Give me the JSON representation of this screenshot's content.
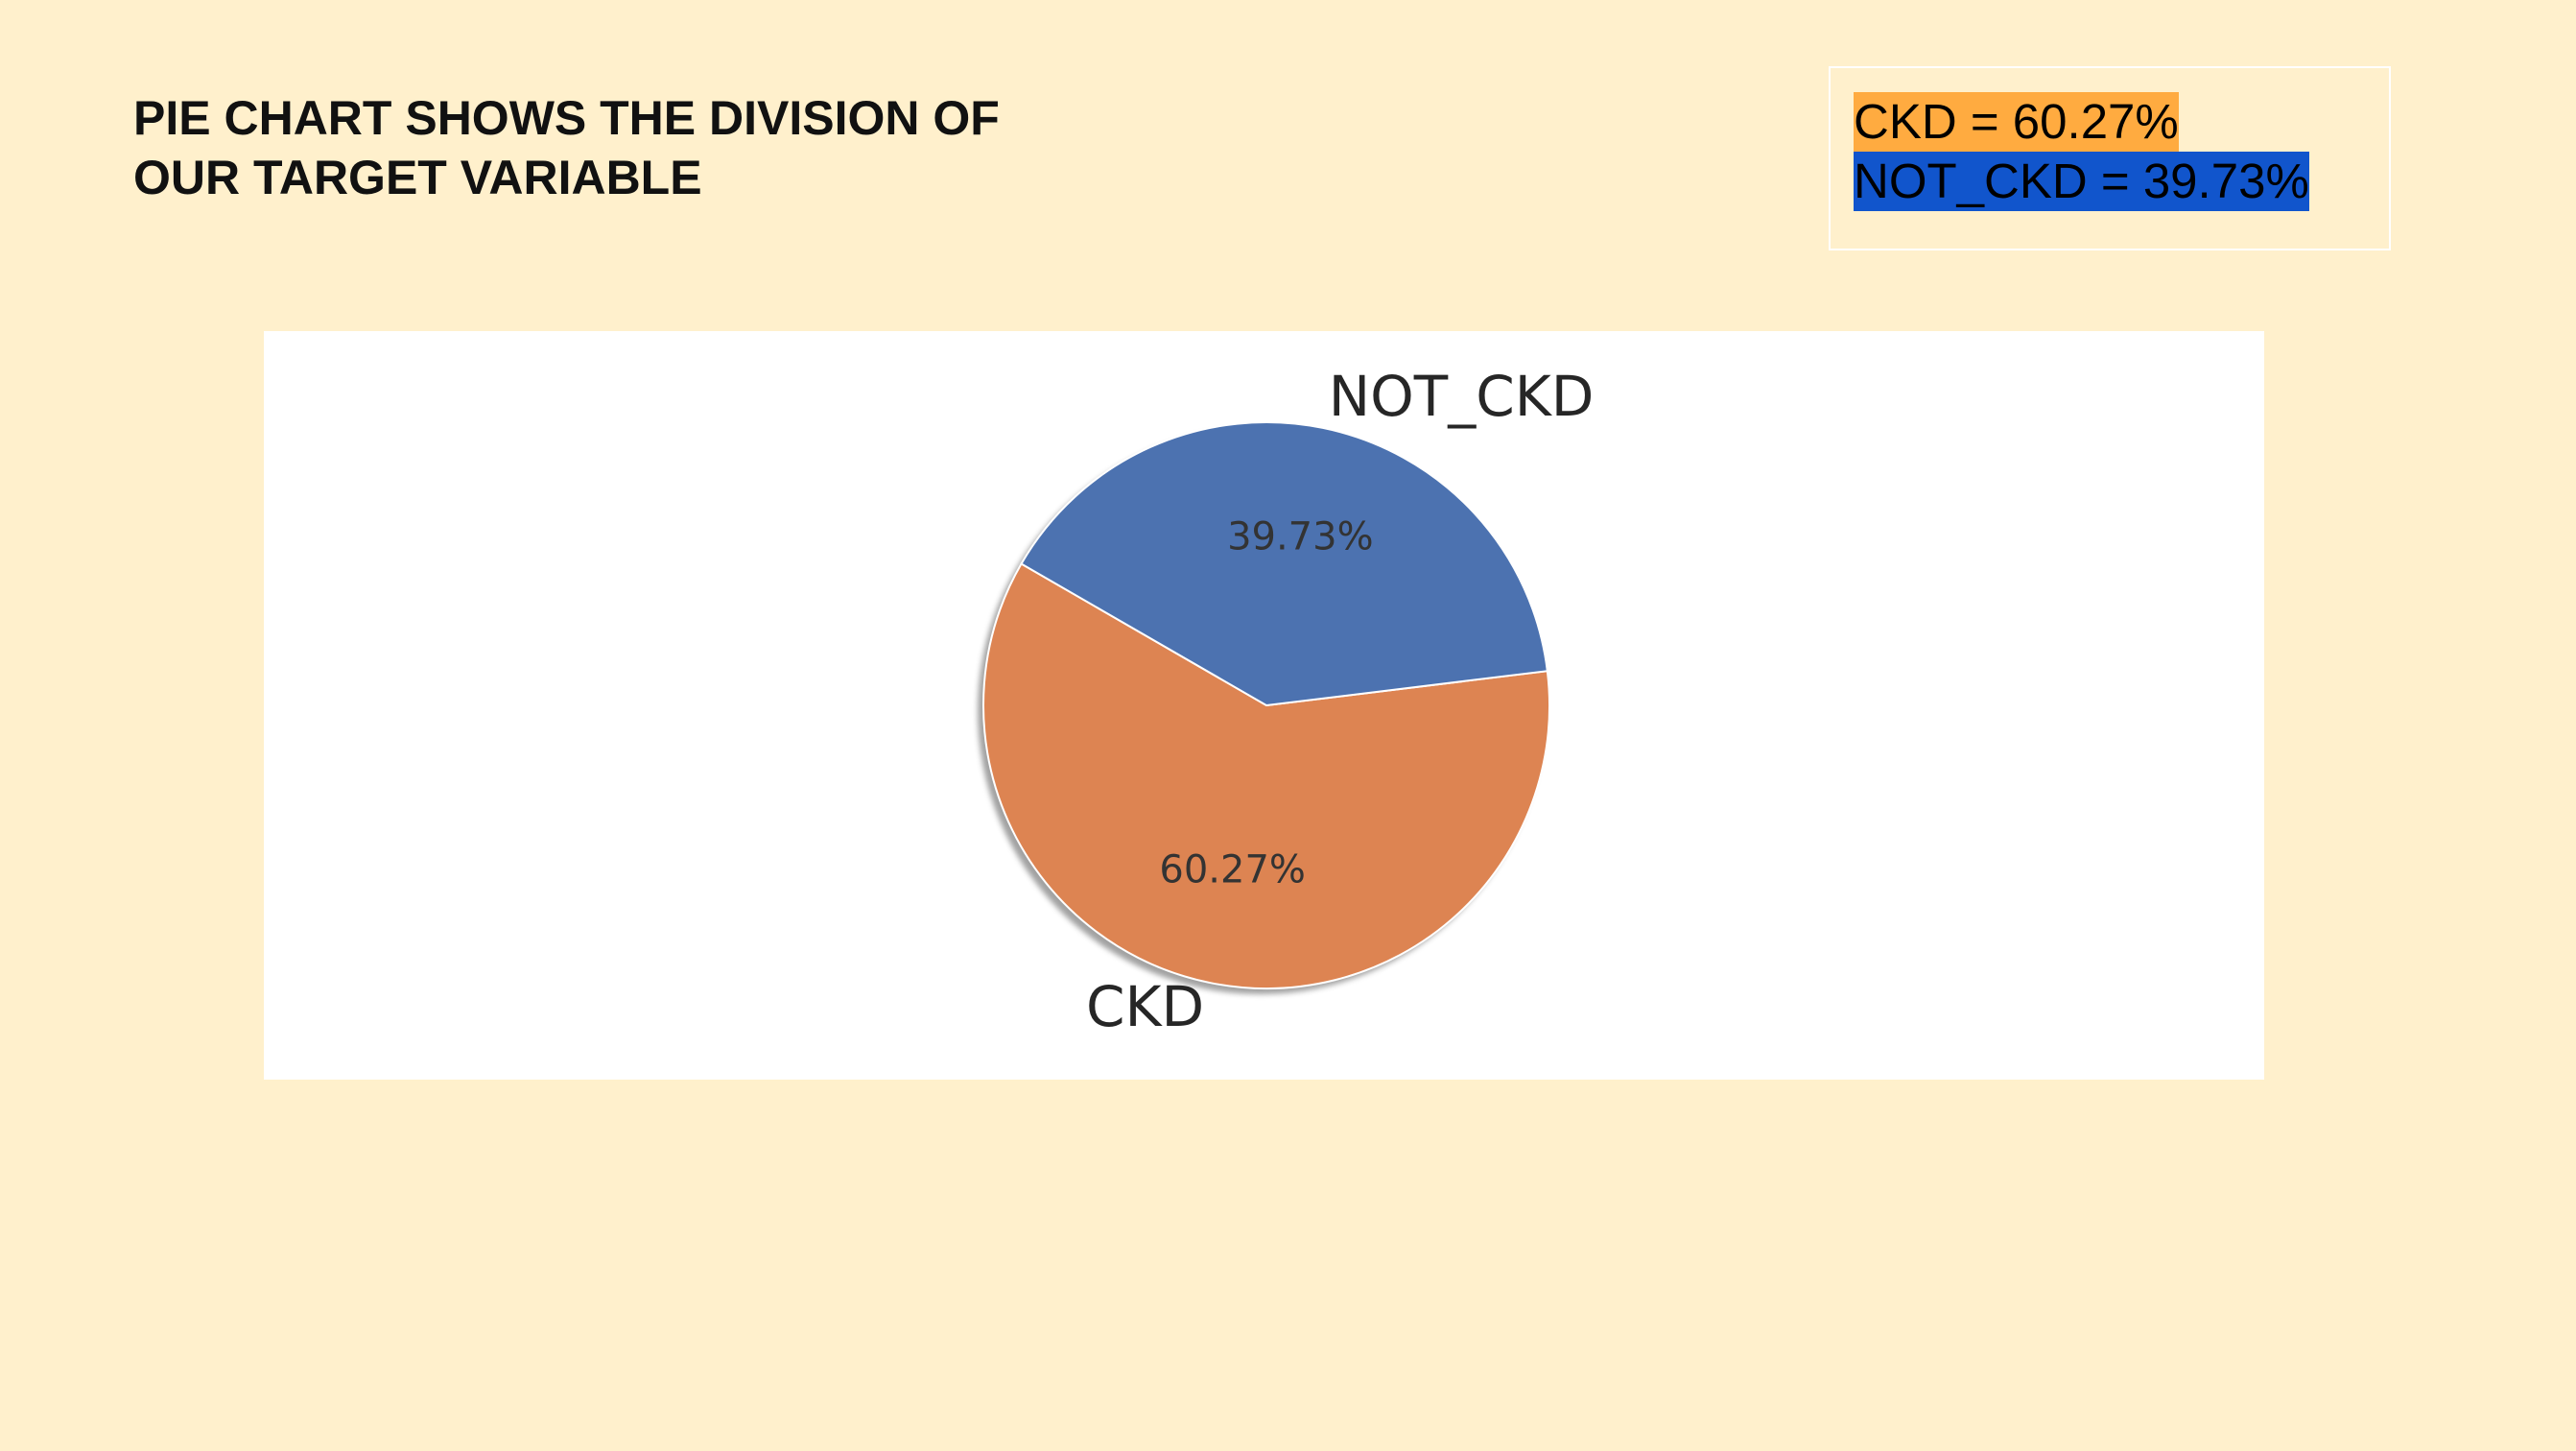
{
  "slide": {
    "title_line1": "PIE CHART SHOWS THE DIVISION OF",
    "title_line2": "OUR TARGET VARIABLE",
    "background": "#FFF0CC"
  },
  "legend_note": {
    "ckd_text": "CKD = 60.27%",
    "not_ckd_text": "NOT_CKD = 39.73%",
    "ckd_highlight": "#FFAB40",
    "not_ckd_highlight": "#1155CC"
  },
  "chart_data": {
    "type": "pie",
    "categories": [
      "CKD",
      "NOT_CKD"
    ],
    "values": [
      60.27,
      39.73
    ],
    "autopct_labels": [
      "60.27%",
      "39.73%"
    ],
    "colors": [
      "#DD8452",
      "#4C72B0"
    ],
    "start_angle_deg": 150,
    "shadow": true,
    "title": "",
    "legend": "none"
  }
}
